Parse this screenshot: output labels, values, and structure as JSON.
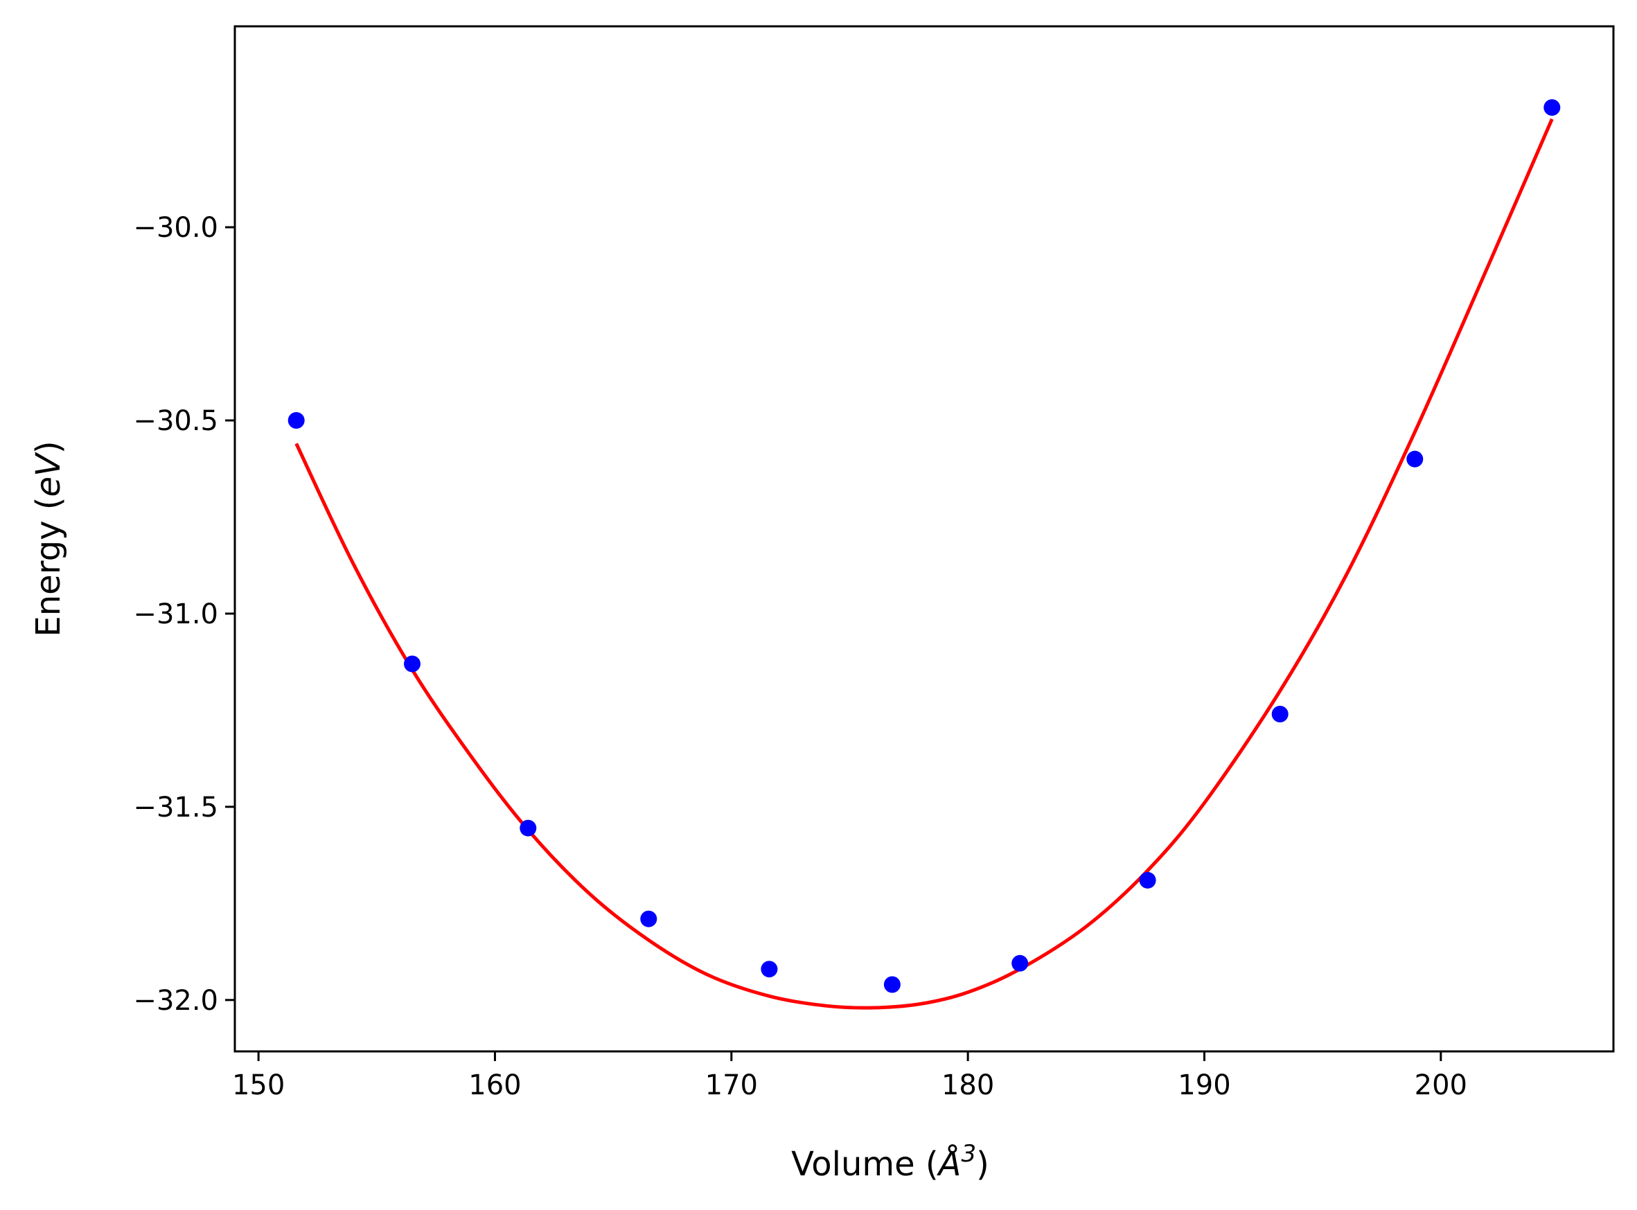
{
  "chart_data": {
    "type": "scatter",
    "title": "",
    "xlabel": {
      "prefix": "Volume (",
      "symbol": "Å",
      "superscript": "3",
      "suffix": ")"
    },
    "ylabel": {
      "prefix": "Energy (",
      "symbol": "eV",
      "suffix": ")"
    },
    "xlim": [
      149.0,
      207.3
    ],
    "ylim": [
      -32.133,
      -29.48
    ],
    "xticks": [
      150,
      160,
      170,
      180,
      190,
      200
    ],
    "xtick_labels": [
      "150",
      "160",
      "170",
      "180",
      "190",
      "200"
    ],
    "yticks": [
      -30.0,
      -30.5,
      -31.0,
      -31.5,
      -32.0
    ],
    "ytick_labels": [
      "−30.0",
      "−30.5",
      "−31.0",
      "−31.5",
      "−32.0"
    ],
    "grid": false,
    "series": [
      {
        "kind": "points",
        "color": "#0000ff",
        "x": [
          151.6,
          156.5,
          161.4,
          166.5,
          171.6,
          176.8,
          182.2,
          187.6,
          193.2,
          198.9,
          204.7
        ],
        "y": [
          -30.5,
          -31.13,
          -31.555,
          -31.79,
          -31.92,
          -31.96,
          -31.905,
          -31.69,
          -31.26,
          -30.6,
          -29.69
        ]
      },
      {
        "kind": "line",
        "color": "#ff0000",
        "x": [
          151.6,
          154.0,
          156.5,
          159.0,
          161.4,
          164.0,
          166.5,
          169.0,
          171.6,
          174.0,
          176.0,
          178.0,
          180.0,
          182.2,
          185.0,
          187.6,
          190.0,
          193.2,
          196.0,
          198.9,
          202.0,
          204.7
        ],
        "y": [
          -30.56,
          -30.87,
          -31.145,
          -31.37,
          -31.56,
          -31.725,
          -31.845,
          -31.935,
          -31.99,
          -32.015,
          -32.02,
          -32.01,
          -31.98,
          -31.92,
          -31.81,
          -31.665,
          -31.49,
          -31.2,
          -30.9,
          -30.53,
          -30.1,
          -29.72
        ]
      }
    ]
  }
}
